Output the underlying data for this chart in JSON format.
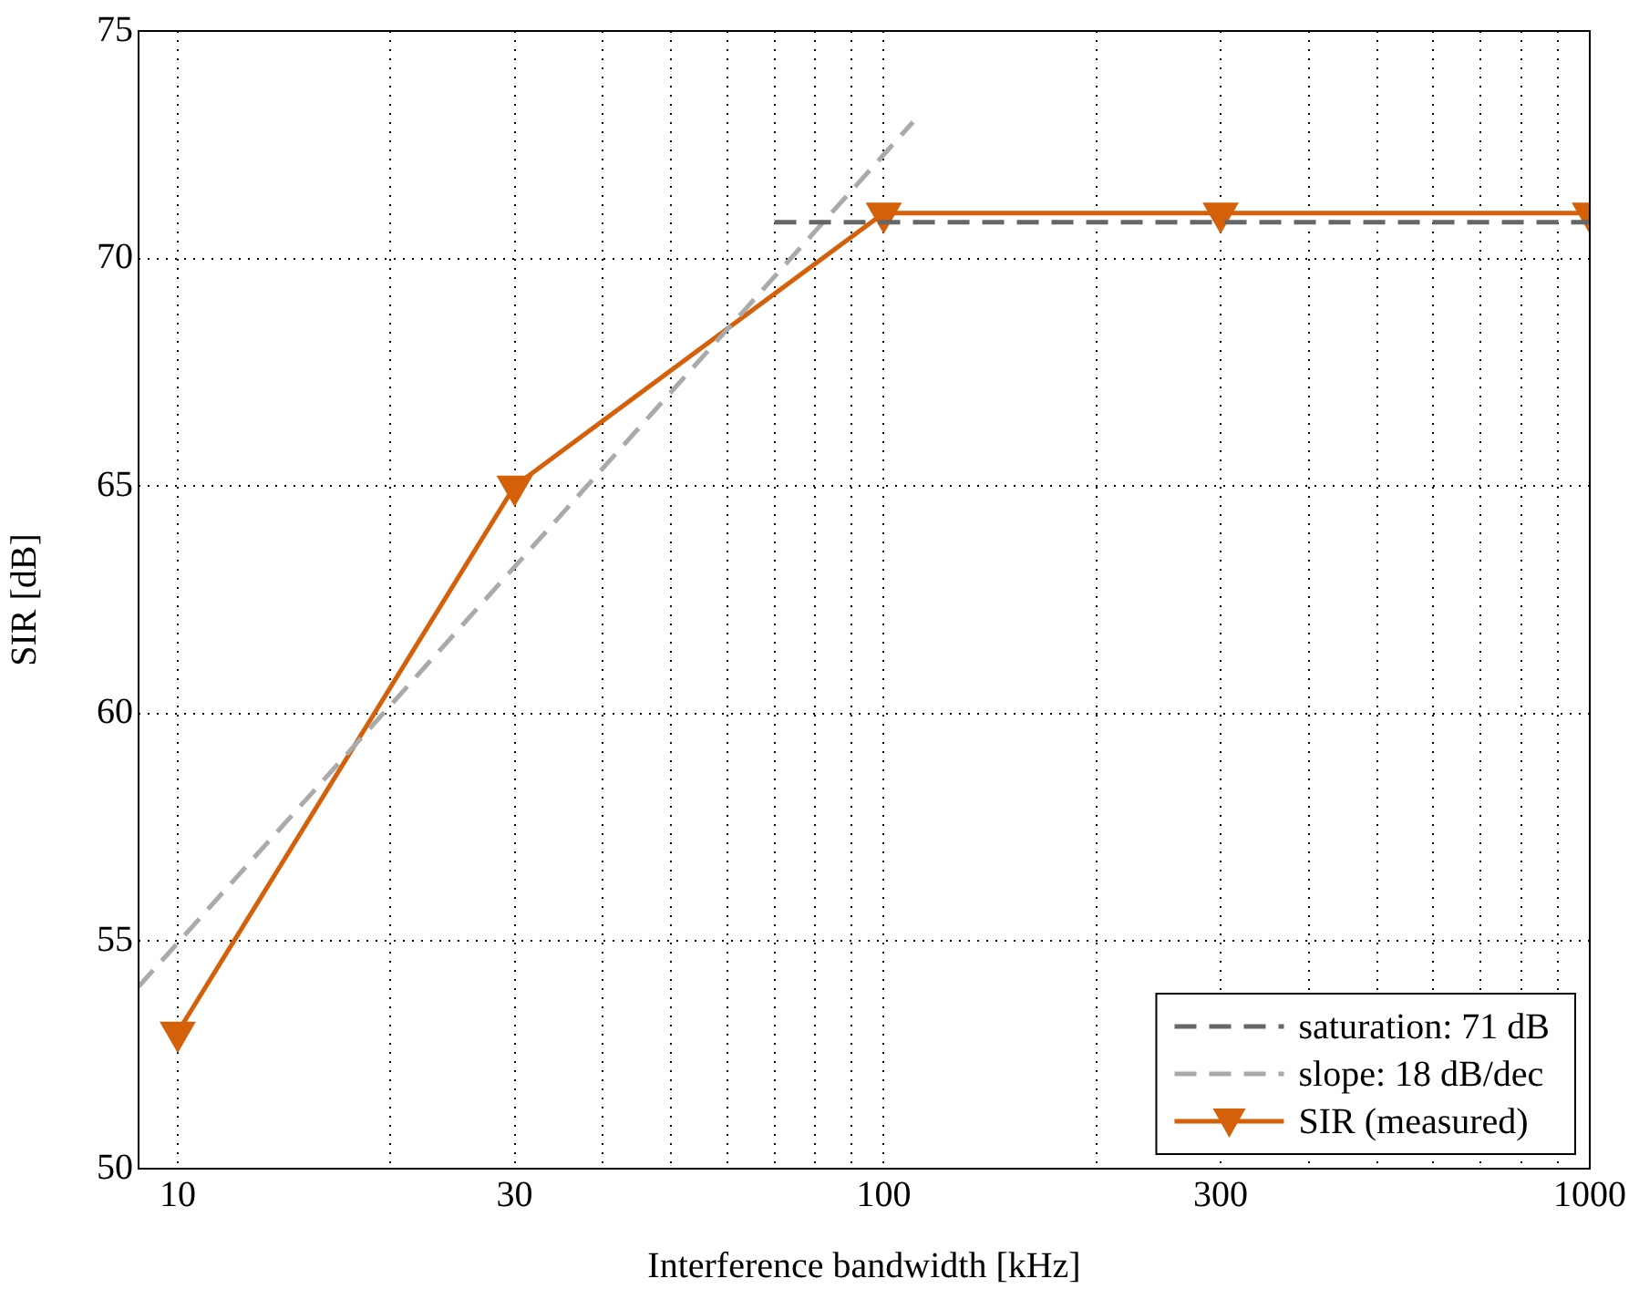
{
  "chart_data": {
    "type": "line",
    "xlabel": "Interference bandwidth [kHz]",
    "ylabel": "SIR [dB]",
    "log": "x",
    "xlim": [
      8.8,
      1000
    ],
    "ylim": [
      50,
      75
    ],
    "xticks": [
      10,
      {
        "value": 20,
        "label": null
      },
      30,
      {
        "value": 40,
        "label": null
      },
      {
        "value": 50,
        "label": null
      },
      {
        "value": 60,
        "label": null
      },
      {
        "value": 70,
        "label": null
      },
      {
        "value": 80,
        "label": null
      },
      {
        "value": 90,
        "label": null
      },
      100,
      {
        "value": 200,
        "label": null
      },
      300,
      {
        "value": 400,
        "label": null
      },
      {
        "value": 500,
        "label": null
      },
      {
        "value": 600,
        "label": null
      },
      {
        "value": 700,
        "label": null
      },
      {
        "value": 800,
        "label": null
      },
      {
        "value": 900,
        "label": null
      },
      1000
    ],
    "yticks": [
      50,
      55,
      60,
      65,
      70,
      75
    ],
    "grid": true,
    "legend": "bottom right",
    "series": [
      {
        "name": "saturation: 71 dB",
        "color": "#666666",
        "x": [
          70,
          1000
        ],
        "values": [
          70.8,
          70.8
        ],
        "line_style": "dashed",
        "marker": "none"
      },
      {
        "name": "slope: 18 dB/dec",
        "color": "#aaaaaa",
        "x": [
          8.8,
          110
        ],
        "values": [
          54,
          73
        ],
        "line_style": "dashed",
        "marker": "none"
      },
      {
        "name": "SIR (measured)",
        "color": "#d4600a",
        "x": [
          10,
          30,
          100,
          300,
          1000
        ],
        "values": [
          53,
          65,
          71,
          71,
          71
        ],
        "line_style": "solid",
        "marker": "triangle"
      }
    ]
  }
}
